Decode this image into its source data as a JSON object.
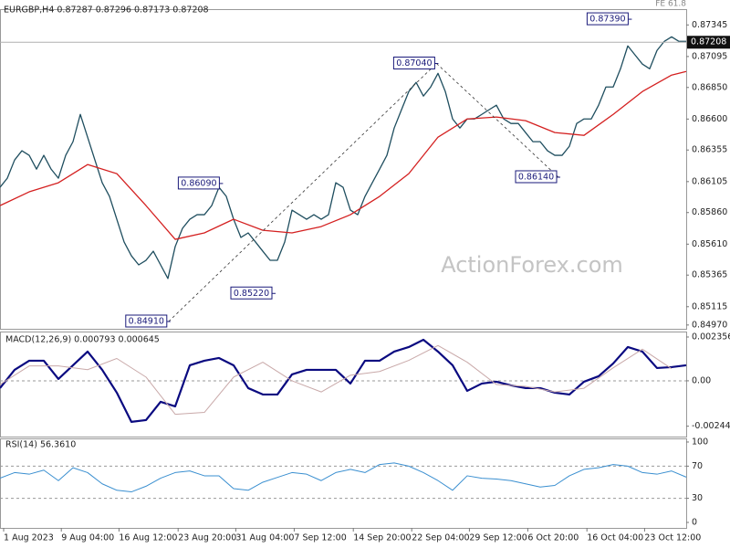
{
  "chart_data": [
    {
      "type": "line",
      "title": "EURGBP,H4  0.87287 0.87296 0.87173 0.87208",
      "watermark": "ActionForex.com",
      "fibo_label": "FE 61.8",
      "x": [
        0,
        1,
        2,
        3,
        4,
        5,
        6,
        7,
        8,
        9,
        10,
        11,
        12,
        13,
        14,
        15,
        16,
        17,
        18,
        19,
        20,
        21,
        22,
        23,
        24,
        25,
        26,
        27,
        28,
        29,
        30,
        31,
        32,
        33,
        34,
        35,
        36,
        37,
        38,
        39,
        40,
        41,
        42,
        43,
        44,
        45,
        46,
        47,
        48,
        49,
        50,
        51,
        52,
        53,
        54,
        55,
        56,
        57,
        58,
        59,
        60,
        61,
        62,
        63,
        64,
        65,
        66,
        67,
        68,
        69,
        70,
        71,
        72,
        73,
        74,
        75,
        76,
        77,
        78,
        79,
        80,
        81,
        82,
        83,
        84,
        85,
        86,
        87,
        88,
        89,
        90,
        91,
        92,
        93,
        94
      ],
      "xlim": [
        0,
        94
      ],
      "ylim": [
        0.8494,
        0.8747
      ],
      "yticks": [
        0.87345,
        0.87095,
        {
          "value": 0.8685,
          "label": "0.86850"
        },
        {
          "value": 0.866,
          "label": "0.86600"
        },
        0.86355,
        0.86105,
        {
          "value": 0.8586,
          "label": "0.85860"
        },
        {
          "value": 0.8561,
          "label": "0.85610"
        },
        0.85365,
        0.85115,
        {
          "value": 0.8497,
          "label": "0.84970"
        }
      ],
      "current_price": {
        "value": 0.87208,
        "label": "0.87208"
      },
      "series": [
        {
          "color": "#1f4e5f",
          "values": [
            0.8606,
            0.86132,
            0.86276,
            0.86349,
            0.86313,
            0.86204,
            0.86313,
            0.86204,
            0.86132,
            0.86313,
            0.86421,
            0.86637,
            0.86457,
            0.86276,
            0.86096,
            0.85988,
            0.85807,
            0.85627,
            0.85518,
            0.85446,
            0.85482,
            0.85554,
            0.85446,
            0.85338,
            0.85591,
            0.85735,
            0.85807,
            0.85843,
            0.85843,
            0.85915,
            0.8606,
            0.85988,
            0.85807,
            0.85663,
            0.85699,
            0.85627,
            0.85554,
            0.85482,
            0.85482,
            0.85627,
            0.85879,
            0.85843,
            0.85807,
            0.85843,
            0.85807,
            0.85843,
            0.86096,
            0.8606,
            0.85879,
            0.85843,
            0.85988,
            0.86096,
            0.86204,
            0.86313,
            0.86529,
            0.86674,
            0.86818,
            0.8689,
            0.86782,
            0.86854,
            0.86962,
            0.86818,
            0.86601,
            0.86529,
            0.86601,
            0.86601,
            0.86637,
            0.86674,
            0.8671,
            0.86601,
            0.86565,
            0.86565,
            0.86493,
            0.86421,
            0.86421,
            0.86349,
            0.86313,
            0.86313,
            0.86385,
            0.86565,
            0.86601,
            0.86601,
            0.8671,
            0.86854,
            0.86854,
            0.86998,
            0.87179,
            0.87107,
            0.87035,
            0.86998,
            0.87143,
            0.87215,
            0.87251,
            0.87215,
            0.87215
          ]
        },
        {
          "color": "#d42020",
          "x": [
            0,
            4,
            8,
            12,
            16,
            20,
            24,
            28,
            32,
            36,
            40,
            44,
            48,
            52,
            56,
            60,
            64,
            68,
            72,
            76,
            80,
            84,
            88,
            92,
            94
          ],
          "values": [
            0.85915,
            0.86024,
            0.86096,
            0.8624,
            0.86168,
            0.85915,
            0.85648,
            0.85699,
            0.85807,
            0.8572,
            0.85699,
            0.85749,
            0.85843,
            0.85988,
            0.86168,
            0.86457,
            0.86601,
            0.86616,
            0.86587,
            0.86493,
            0.86471,
            0.86637,
            0.86818,
            0.86948,
            0.86977
          ]
        }
      ],
      "annotations": [
        {
          "text": "0.84910",
          "value": 0.8491,
          "x": 23.1
        },
        {
          "text": "0.85220",
          "value": 0.8522,
          "x": 37.5
        },
        {
          "text": "0.86090",
          "value": 0.8609,
          "x": 30.3
        },
        {
          "text": "0.87040",
          "value": 0.8704,
          "x": 59.8
        },
        {
          "text": "0.86140",
          "value": 0.8614,
          "x": 76.5
        },
        {
          "text": "0.87390",
          "value": 0.8739,
          "x": 86.3
        }
      ]
    },
    {
      "type": "line",
      "title": "MACD(12,26,9) 0.000793 0.000645",
      "ylim": [
        -0.003,
        0.00265
      ],
      "yticks": [
        0.002356,
        {
          "value": 0,
          "label": "0.00"
        },
        -0.002442
      ],
      "levels": [
        0
      ],
      "series": [
        {
          "color": "#0a0a80",
          "width": 2.2,
          "x": [
            0,
            2,
            4,
            6,
            8,
            10,
            12,
            14,
            16,
            18,
            20,
            22,
            24,
            26,
            28,
            30,
            32,
            34,
            36,
            38,
            40,
            42,
            44,
            46,
            48,
            50,
            52,
            54,
            56,
            58,
            60,
            62,
            64,
            66,
            68,
            70,
            72,
            74,
            76,
            78,
            80,
            82,
            84,
            86,
            88,
            90,
            92,
            94
          ],
          "values": [
            -0.000393,
            0.000589,
            0.00108,
            0.00108,
            9.8e-05,
            0.000834,
            0.001571,
            0.000589,
            -0.000638,
            -0.002209,
            -0.002111,
            -0.001129,
            -0.001374,
            0.000834,
            0.00108,
            0.001227,
            0.000834,
            -0.000393,
            -0.000736,
            -0.000736,
            0.000344,
            0.000589,
            0.000589,
            0.000589,
            -0.000147,
            0.00108,
            0.00108,
            0.001571,
            0.001816,
            0.002209,
            0.001571,
            0.000834,
            -0.00054,
            -0.000147,
            -4.9e-05,
            -0.000245,
            -0.000393,
            -0.000393,
            -0.000638,
            -0.000736,
            -4.9e-05,
            0.000245,
            0.000933,
            0.001816,
            0.001571,
            0.000687,
            0.000736,
            0.000834
          ]
        },
        {
          "color": "#c9a9a9",
          "width": 1,
          "x": [
            0,
            4,
            8,
            12,
            16,
            20,
            24,
            28,
            32,
            36,
            40,
            44,
            48,
            52,
            56,
            60,
            64,
            68,
            72,
            76,
            80,
            84,
            88,
            92
          ],
          "values": [
            -0.0002,
            0.0008,
            0.0008,
            0.0006,
            0.0012,
            0.0002,
            -0.0018,
            -0.0017,
            0.0002,
            0.001,
            0,
            -0.0006,
            0.0003,
            0.0005,
            0.0011,
            0.0019,
            0.001,
            -0.0002,
            -0.0003,
            -0.0006,
            -0.0004,
            0.0007,
            0.0017,
            0.00065
          ]
        }
      ]
    },
    {
      "type": "line",
      "title": "RSI(14) 56.3610",
      "ylim": [
        -6.8,
        104.5
      ],
      "yticks": [
        100,
        70,
        30,
        0
      ],
      "levels": [
        70,
        30
      ],
      "xlim": [
        0,
        94
      ],
      "xticks": [
        {
          "value": 0.5,
          "label": "1 Aug 2023"
        },
        {
          "value": 8.4,
          "label": "9 Aug 04:00"
        },
        {
          "value": 16.3,
          "label": "16 Aug 12:00"
        },
        {
          "value": 24.4,
          "label": "23 Aug 20:00"
        },
        {
          "value": 32.3,
          "label": "31 Aug 04:00"
        },
        {
          "value": 40.3,
          "label": "7 Sep 12:00"
        },
        {
          "value": 48.4,
          "label": "14 Sep 20:00"
        },
        {
          "value": 56.4,
          "label": "22 Sep 04:00"
        },
        {
          "value": 64.3,
          "label": "29 Sep 12:00"
        },
        {
          "value": 72.3,
          "label": "6 Oct 20:00"
        },
        {
          "value": 80.4,
          "label": "16 Oct 04:00"
        },
        {
          "value": 88.3,
          "label": "23 Oct 12:00"
        }
      ],
      "series": [
        {
          "color": "#3a8fd0",
          "width": 1,
          "x": [
            0,
            2,
            4,
            6,
            8,
            10,
            12,
            14,
            16,
            18,
            20,
            22,
            24,
            26,
            28,
            30,
            32,
            34,
            36,
            38,
            40,
            42,
            44,
            46,
            48,
            50,
            52,
            54,
            56,
            58,
            60,
            62,
            64,
            66,
            68,
            70,
            72,
            74,
            76,
            78,
            80,
            82,
            84,
            86,
            88,
            90,
            92,
            94
          ],
          "values": [
            55,
            62,
            60,
            65,
            52,
            68,
            62,
            48,
            40,
            38,
            45,
            55,
            62,
            64,
            58,
            58,
            42,
            40,
            50,
            56,
            62,
            60,
            52,
            62,
            66,
            62,
            72,
            74,
            70,
            62,
            52,
            40,
            58,
            55,
            54,
            52,
            48,
            44,
            46,
            58,
            66,
            68,
            72,
            70,
            62,
            60,
            64,
            56.361
          ]
        }
      ]
    }
  ]
}
